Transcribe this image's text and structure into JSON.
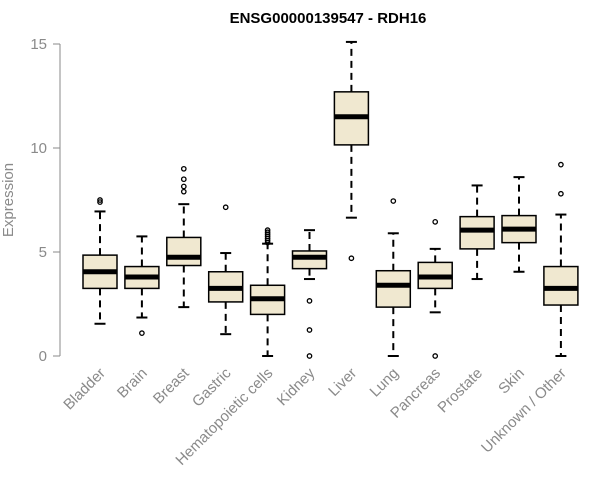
{
  "chart_data": {
    "type": "boxplot",
    "title": "ENSG00000139547 - RDH16",
    "xlabel": "",
    "ylabel": "Expression",
    "ylim": [
      0,
      15
    ],
    "yticks": [
      0,
      5,
      10,
      15
    ],
    "grid": false,
    "box_fill": "#f0e8d0",
    "categories": [
      "Bladder",
      "Brain",
      "Breast",
      "Gastric",
      "Hematopoietic cells",
      "Kidney",
      "Liver",
      "Lung",
      "Pancreas",
      "Prostate",
      "Skin",
      "Unknown / Other"
    ],
    "boxes": [
      {
        "name": "Bladder",
        "whisker_low": 1.55,
        "q1": 3.25,
        "median": 4.05,
        "q3": 4.85,
        "whisker_high": 6.95,
        "outliers": [
          7.4,
          7.5
        ]
      },
      {
        "name": "Brain",
        "whisker_low": 1.85,
        "q1": 3.25,
        "median": 3.8,
        "q3": 4.3,
        "whisker_high": 5.75,
        "outliers": [
          1.1
        ]
      },
      {
        "name": "Breast",
        "whisker_low": 2.35,
        "q1": 4.35,
        "median": 4.75,
        "q3": 5.7,
        "whisker_high": 7.3,
        "outliers": [
          7.9,
          8.15,
          8.5,
          9.0
        ]
      },
      {
        "name": "Gastric",
        "whisker_low": 1.05,
        "q1": 2.6,
        "median": 3.25,
        "q3": 4.05,
        "whisker_high": 4.95,
        "outliers": [
          7.15
        ]
      },
      {
        "name": "Hematopoietic cells",
        "whisker_low": 0.0,
        "q1": 2.0,
        "median": 2.75,
        "q3": 3.4,
        "whisker_high": 5.4,
        "outliers": [
          5.45,
          5.55,
          5.65,
          5.75,
          5.85,
          5.95,
          6.05
        ]
      },
      {
        "name": "Kidney",
        "whisker_low": 3.7,
        "q1": 4.2,
        "median": 4.75,
        "q3": 5.05,
        "whisker_high": 6.05,
        "outliers": [
          2.65,
          1.25,
          0.0
        ]
      },
      {
        "name": "Liver",
        "whisker_low": 6.65,
        "q1": 10.15,
        "median": 11.5,
        "q3": 12.7,
        "whisker_high": 15.1,
        "outliers": [
          4.7
        ]
      },
      {
        "name": "Lung",
        "whisker_low": 0.0,
        "q1": 2.35,
        "median": 3.4,
        "q3": 4.1,
        "whisker_high": 5.9,
        "outliers": [
          7.45
        ]
      },
      {
        "name": "Pancreas",
        "whisker_low": 2.1,
        "q1": 3.25,
        "median": 3.8,
        "q3": 4.5,
        "whisker_high": 5.15,
        "outliers": [
          6.45,
          0.0
        ]
      },
      {
        "name": "Prostate",
        "whisker_low": 3.7,
        "q1": 5.15,
        "median": 6.05,
        "q3": 6.7,
        "whisker_high": 8.2,
        "outliers": []
      },
      {
        "name": "Skin",
        "whisker_low": 4.05,
        "q1": 5.45,
        "median": 6.1,
        "q3": 6.75,
        "whisker_high": 8.6,
        "outliers": []
      },
      {
        "name": "Unknown / Other",
        "whisker_low": 0.0,
        "q1": 2.45,
        "median": 3.25,
        "q3": 4.3,
        "whisker_high": 6.8,
        "outliers": [
          7.8,
          9.2
        ]
      }
    ]
  }
}
